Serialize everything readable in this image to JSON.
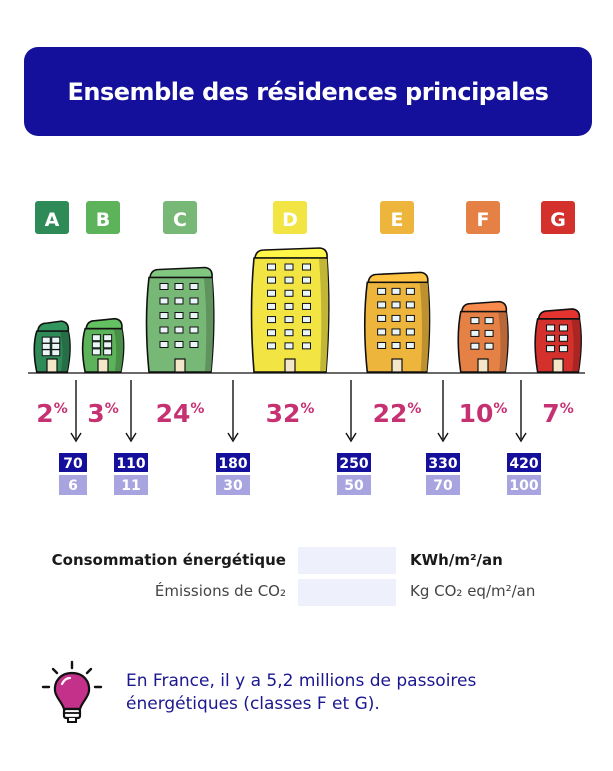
{
  "header": {
    "title": "Ensemble des résidences principales"
  },
  "legend": {
    "consumption_label": "Consommation énergétique",
    "consumption_unit": "KWh/m²/an",
    "emissions_label": "Émissions de CO₂",
    "emissions_unit": "Kg CO₂ eq/m²/an"
  },
  "note": {
    "text": "En France, il y a 5,2 millions de passoires énergétiques (classes F et G)."
  },
  "chart_data": {
    "type": "bar",
    "categories": [
      "A",
      "B",
      "C",
      "D",
      "E",
      "F",
      "G"
    ],
    "values": [
      2,
      3,
      24,
      32,
      22,
      10,
      7
    ],
    "unit": "%",
    "thresholds": [
      {
        "consumption": 70,
        "emissions": 6
      },
      {
        "consumption": 110,
        "emissions": 11
      },
      {
        "consumption": 180,
        "emissions": 30
      },
      {
        "consumption": 250,
        "emissions": 50
      },
      {
        "consumption": 330,
        "emissions": 70
      },
      {
        "consumption": 420,
        "emissions": 100
      }
    ],
    "colors": {
      "A": "#2e8a57",
      "B": "#5db35a",
      "C": "#78b876",
      "D": "#f2e443",
      "E": "#eeb53c",
      "F": "#e68146",
      "G": "#d4302c",
      "percent": "#c63172",
      "consumption_box": "#15109b",
      "emissions_box": "#a8a4e0",
      "title_bg": "#15109b"
    }
  }
}
